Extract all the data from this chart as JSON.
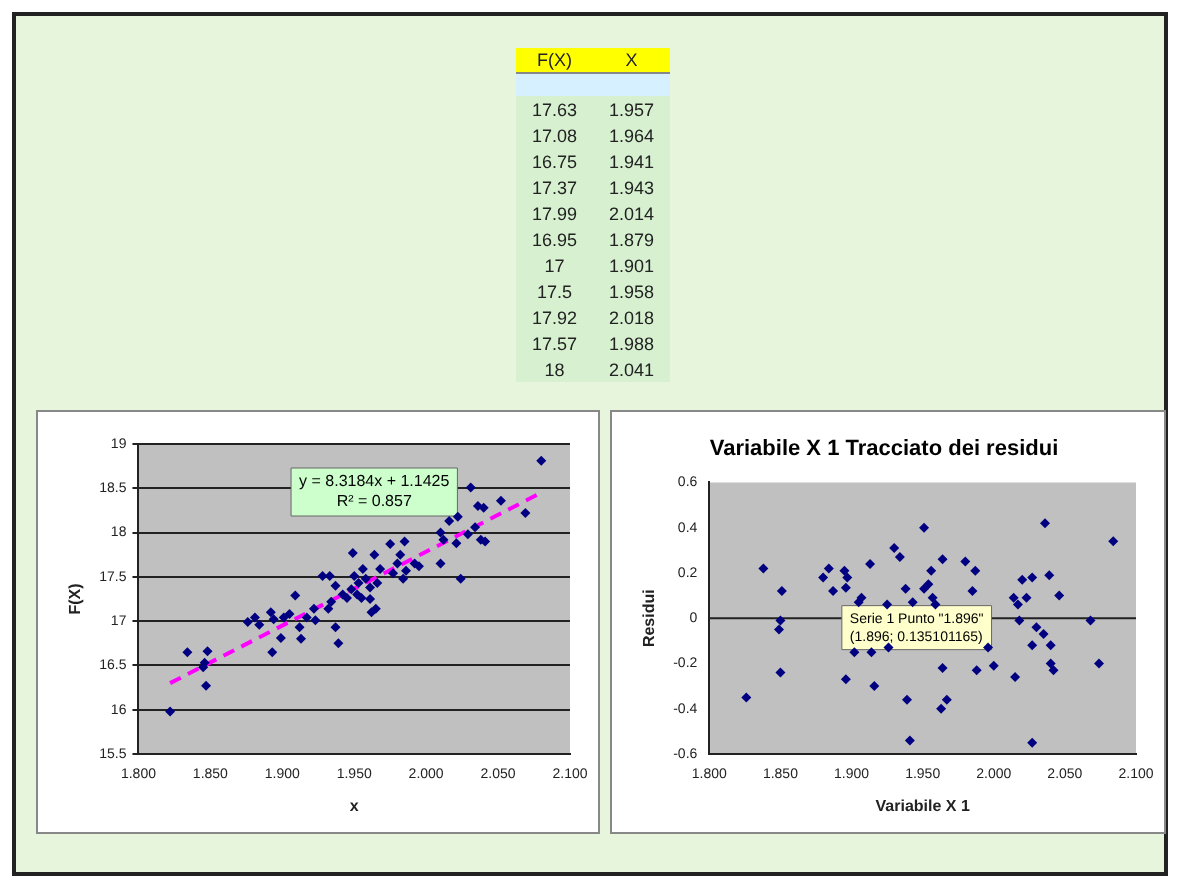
{
  "chart_data": [
    {
      "type": "other",
      "categories": [
        "F(X)",
        "X"
      ],
      "annotations": [
        "17.63",
        "1.957",
        "17.08",
        "1.964",
        "16.75",
        "1.941",
        "17.37",
        "1.943",
        "17.99",
        "2.014",
        "16.95",
        "1.879",
        "17",
        "1.901",
        "17.5",
        "1.958",
        "17.92",
        "2.018",
        "17.57",
        "1.988",
        "18",
        "2.041"
      ]
    },
    {
      "type": "scatter",
      "xlabel": "x",
      "ylabel": "F(X)",
      "grid": "y",
      "marker": "diamond",
      "xlim": [
        1.8,
        2.1
      ],
      "xticks": [
        {
          "value": 1.8,
          "label": "1.800"
        },
        {
          "value": 1.85,
          "label": "1.850"
        },
        {
          "value": 1.9,
          "label": "1.900"
        },
        {
          "value": 1.95,
          "label": "1.950"
        },
        {
          "value": 2.0,
          "label": "2.000"
        },
        {
          "value": 2.05,
          "label": "2.050"
        },
        {
          "value": 2.1,
          "label": "2.100"
        }
      ],
      "ylim": [
        15.5,
        19
      ],
      "yticks": [
        15.5,
        16,
        16.5,
        17,
        17.5,
        18,
        18.5,
        19
      ],
      "annotations": [
        "y = 8.3184x + 1.1425\nR² = 0.857"
      ],
      "series": [
        {
          "type": "scatter",
          "color": "#000080",
          "x": [
            1.822,
            1.834,
            1.845,
            1.846,
            1.847,
            1.848,
            1.876,
            1.881,
            1.884,
            1.892,
            1.893,
            1.894,
            1.899,
            1.901,
            1.905,
            1.909,
            1.912,
            1.913,
            1.917,
            1.922,
            1.923,
            1.928,
            1.932,
            1.934,
            1.933,
            1.937,
            1.937,
            1.939,
            1.942,
            1.945,
            1.948,
            1.949,
            1.95,
            1.952,
            1.953,
            1.955,
            1.956,
            1.958,
            1.961,
            1.961,
            1.962,
            1.964,
            1.965,
            1.966,
            1.968,
            1.975,
            1.977,
            1.98,
            1.982,
            1.984,
            1.985,
            1.986,
            1.992,
            1.995,
            2.01,
            2.01,
            2.012,
            2.016,
            2.021,
            2.022,
            2.024,
            2.029,
            2.031,
            2.034,
            2.036,
            2.038,
            2.04,
            2.041,
            2.052,
            2.069,
            2.08
          ],
          "values": [
            15.98,
            16.65,
            16.48,
            16.53,
            16.27,
            16.66,
            16.99,
            17.04,
            16.96,
            17.1,
            16.65,
            17.02,
            16.81,
            17.04,
            17.08,
            17.29,
            16.93,
            16.8,
            17.04,
            17.14,
            17.01,
            17.51,
            17.14,
            17.22,
            17.51,
            17.4,
            16.93,
            16.75,
            17.3,
            17.26,
            17.36,
            17.77,
            17.51,
            17.3,
            17.43,
            17.26,
            17.59,
            17.48,
            17.38,
            17.25,
            17.1,
            17.75,
            17.14,
            17.43,
            17.59,
            17.87,
            17.54,
            17.65,
            17.75,
            17.48,
            17.9,
            17.57,
            17.65,
            17.62,
            18.0,
            17.65,
            17.92,
            18.13,
            17.88,
            18.18,
            17.48,
            17.98,
            18.51,
            18.06,
            18.3,
            17.92,
            18.28,
            17.9,
            18.36,
            18.22,
            18.81
          ]
        },
        {
          "type": "line",
          "color": "#ff00ff",
          "line_style": "dashed",
          "marker": "none",
          "x": [
            1.822,
            2.08
          ],
          "values": [
            16.3,
            18.45
          ]
        }
      ]
    },
    {
      "type": "scatter",
      "title": "Variabile X 1 Tracciato dei residui",
      "xlabel": "Variabile X 1",
      "ylabel": "Residui",
      "marker": "diamond",
      "xlim": [
        1.8,
        2.1
      ],
      "xticks": [
        {
          "value": 1.8,
          "label": "1.800"
        },
        {
          "value": 1.85,
          "label": "1.850"
        },
        {
          "value": 1.9,
          "label": "1.900"
        },
        {
          "value": 1.95,
          "label": "1.950"
        },
        {
          "value": 2.0,
          "label": "2.000"
        },
        {
          "value": 2.05,
          "label": "2.050"
        },
        {
          "value": 2.1,
          "label": "2.100"
        }
      ],
      "ylim": [
        -0.6,
        0.6
      ],
      "yticks": [
        -0.6,
        -0.4,
        -0.2,
        0,
        0.2,
        0.4,
        0.6
      ],
      "annotations": [
        {
          "text": "Serie 1 Punto \"1.896\"\n(1.896; 0.135101165)",
          "x": 1.896,
          "y": 0.135
        }
      ],
      "ref_lines": [
        {
          "axis": "y",
          "value": 0
        }
      ],
      "series": [
        {
          "type": "scatter",
          "color": "#000080",
          "x": [
            1.826,
            1.838,
            1.849,
            1.85,
            1.851,
            1.85,
            1.88,
            1.884,
            1.887,
            1.895,
            1.897,
            1.896,
            1.896,
            1.902,
            1.905,
            1.907,
            1.925,
            1.943,
            1.957,
            1.959,
            1.913,
            1.914,
            1.916,
            1.926,
            1.93,
            1.934,
            1.938,
            1.939,
            1.941,
            1.951,
            1.951,
            1.954,
            1.956,
            1.964,
            1.964,
            1.963,
            1.967,
            1.98,
            1.985,
            1.987,
            1.988,
            1.996,
            2.0,
            2.014,
            2.015,
            2.017,
            2.018,
            2.02,
            2.023,
            2.027,
            2.027,
            2.027,
            2.03,
            2.035,
            2.036,
            2.039,
            2.04,
            2.04,
            2.042,
            2.046,
            2.068,
            2.074,
            2.084
          ],
          "values": [
            -0.35,
            0.22,
            -0.05,
            -0.01,
            0.12,
            -0.24,
            0.18,
            0.22,
            0.12,
            0.21,
            0.18,
            0.135,
            -0.27,
            -0.15,
            0.07,
            0.09,
            0.06,
            0.07,
            0.09,
            0.06,
            0.24,
            -0.15,
            -0.3,
            -0.13,
            0.31,
            0.27,
            0.13,
            -0.36,
            -0.54,
            0.4,
            0.13,
            0.15,
            0.21,
            0.26,
            -0.22,
            -0.4,
            -0.36,
            0.25,
            0.12,
            0.21,
            -0.23,
            -0.13,
            -0.21,
            0.09,
            -0.26,
            0.06,
            -0.01,
            0.17,
            0.09,
            0.18,
            -0.12,
            -0.55,
            -0.04,
            -0.07,
            0.42,
            0.19,
            -0.12,
            -0.2,
            -0.23,
            0.1,
            -0.01,
            -0.2,
            0.34
          ]
        }
      ]
    }
  ]
}
